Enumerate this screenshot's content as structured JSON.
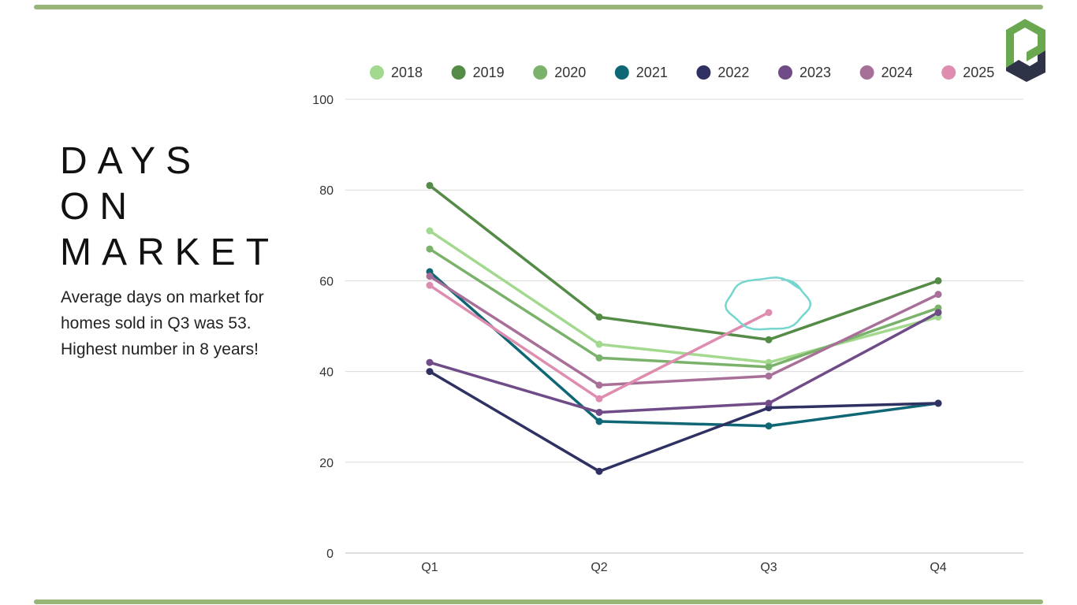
{
  "colors": {
    "accent_bar": "#97b576",
    "logo_green": "#6aa84f",
    "logo_navy": "#2e3347",
    "annotation": "#74d6cf"
  },
  "slide": {
    "title_lines": [
      "DAYS",
      "ON",
      "MARKET"
    ],
    "subtitle": "Average days on market for homes sold in Q3 was 53.  Highest number in 8 years!"
  },
  "logo": {
    "icon": "pd-logo-icon"
  },
  "chart_data": {
    "type": "line",
    "categories": [
      "Q1",
      "Q2",
      "Q3",
      "Q4"
    ],
    "ylim": [
      0,
      100
    ],
    "yticks": [
      0,
      20,
      40,
      60,
      80,
      100
    ],
    "grid": true,
    "legend_position": "top",
    "title": "",
    "xlabel": "",
    "ylabel": "",
    "series": [
      {
        "name": "2018",
        "color": "#a3d98f",
        "values": [
          71,
          46,
          42,
          52
        ]
      },
      {
        "name": "2019",
        "color": "#548b47",
        "values": [
          81,
          52,
          47,
          60
        ]
      },
      {
        "name": "2020",
        "color": "#7ab26b",
        "values": [
          67,
          43,
          41,
          54
        ]
      },
      {
        "name": "2021",
        "color": "#0f6674",
        "values": [
          62,
          29,
          28,
          33
        ]
      },
      {
        "name": "2022",
        "color": "#2f3163",
        "values": [
          40,
          18,
          32,
          33
        ]
      },
      {
        "name": "2023",
        "color": "#6f4b88",
        "values": [
          42,
          31,
          33,
          53
        ]
      },
      {
        "name": "2024",
        "color": "#a87099",
        "values": [
          61,
          37,
          39,
          57
        ]
      },
      {
        "name": "2025",
        "color": "#de8db0",
        "values": [
          59,
          34,
          53,
          null
        ]
      }
    ],
    "annotation": {
      "category": "Q3",
      "series": "2025",
      "shape": "hand-drawn circle"
    }
  }
}
